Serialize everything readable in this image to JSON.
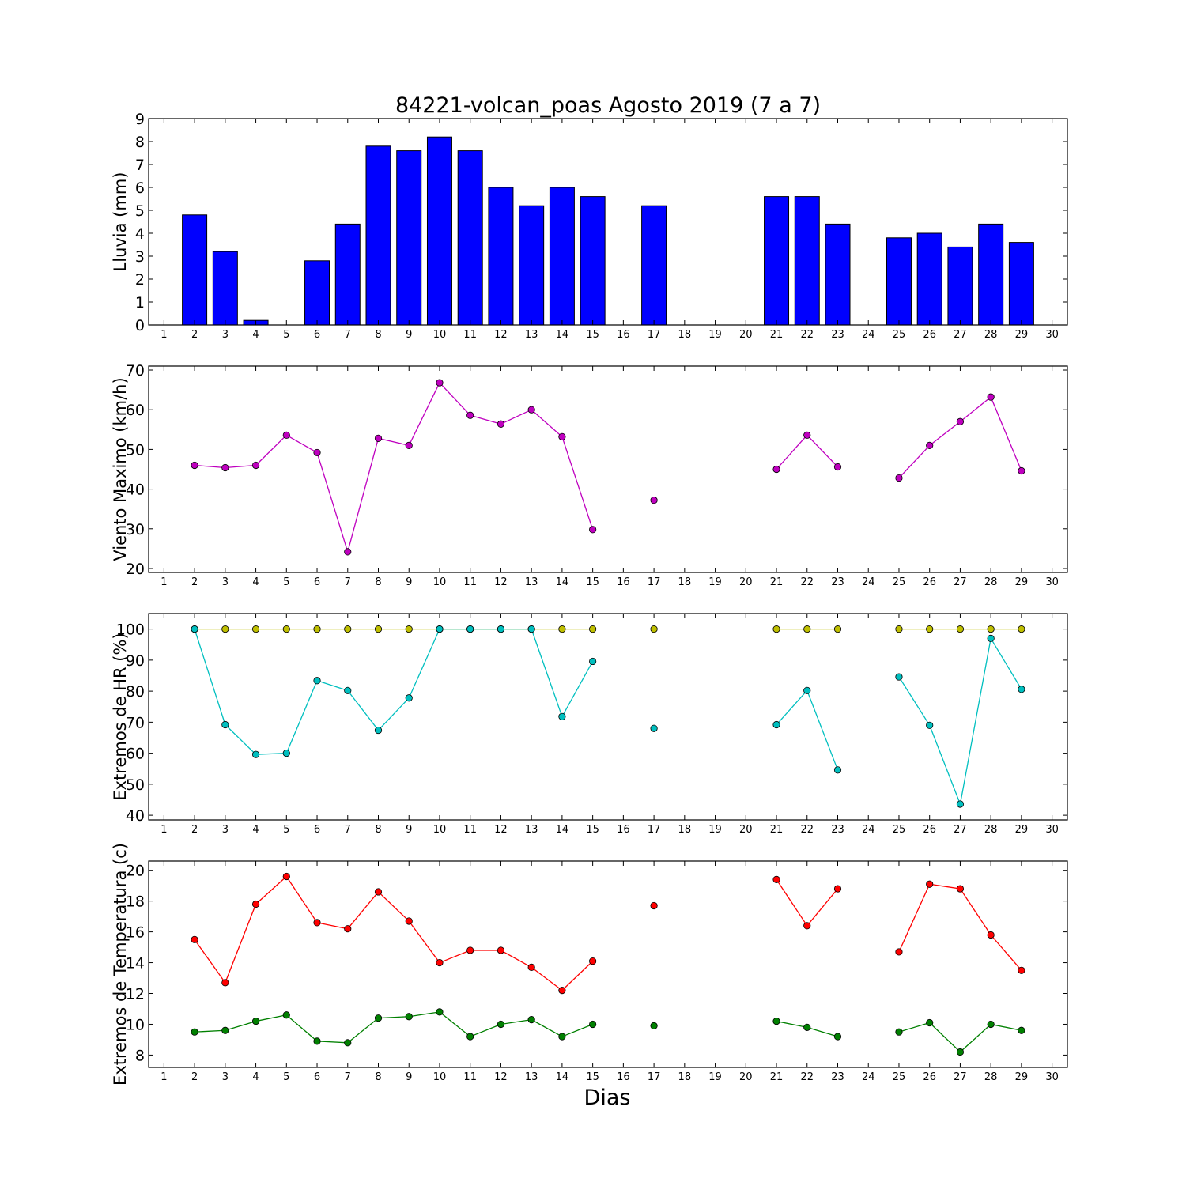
{
  "title": "84221-volcan_poas Agosto 2019  (7 a 7)",
  "xlabel": "Dias",
  "colors": {
    "rain": "#0000ff",
    "wind": "#bf00bf",
    "hr_max": "#bfbf00",
    "hr_min": "#00bfbf",
    "temp_max": "#ff0000",
    "temp_min": "#008000"
  },
  "chart_data": [
    {
      "type": "bar",
      "ylabel": "Lluvia (mm)",
      "xlim": [
        0.5,
        30.5
      ],
      "ylim": [
        0,
        9
      ],
      "yticks": [
        0,
        1,
        2,
        3,
        4,
        5,
        6,
        7,
        8,
        9
      ],
      "x": [
        1,
        2,
        3,
        4,
        5,
        6,
        7,
        8,
        9,
        10,
        11,
        12,
        13,
        14,
        15,
        16,
        17,
        18,
        19,
        20,
        21,
        22,
        23,
        24,
        25,
        26,
        27,
        28,
        29,
        30
      ],
      "series": [
        {
          "color": "#0000ff",
          "values": [
            null,
            4.8,
            3.2,
            0.2,
            null,
            2.8,
            4.4,
            7.8,
            7.6,
            8.2,
            7.6,
            6.0,
            5.2,
            6.0,
            5.6,
            null,
            5.2,
            null,
            null,
            null,
            5.6,
            5.6,
            4.4,
            null,
            3.8,
            4.0,
            3.4,
            4.4,
            3.6,
            null
          ]
        }
      ]
    },
    {
      "type": "line",
      "ylabel": "Viento Maximo (km/h)",
      "xlim": [
        0.5,
        30.5
      ],
      "ylim": [
        19,
        71
      ],
      "yticks": [
        20,
        30,
        40,
        50,
        60,
        70
      ],
      "x": [
        1,
        2,
        3,
        4,
        5,
        6,
        7,
        8,
        9,
        10,
        11,
        12,
        13,
        14,
        15,
        16,
        17,
        18,
        19,
        20,
        21,
        22,
        23,
        24,
        25,
        26,
        27,
        28,
        29,
        30
      ],
      "series": [
        {
          "color": "#bf00bf",
          "values": [
            null,
            46.0,
            45.4,
            46.0,
            53.6,
            49.2,
            24.2,
            52.8,
            51.0,
            66.8,
            58.6,
            56.4,
            60.0,
            53.2,
            29.8,
            null,
            37.2,
            null,
            null,
            null,
            45.0,
            53.6,
            45.6,
            null,
            42.8,
            51.0,
            57.0,
            63.2,
            44.6,
            null
          ]
        }
      ]
    },
    {
      "type": "line",
      "ylabel": "Extremos de HR (%)",
      "xlim": [
        0.5,
        30.5
      ],
      "ylim": [
        38.5,
        105
      ],
      "yticks": [
        40,
        50,
        60,
        70,
        80,
        90,
        100
      ],
      "x": [
        1,
        2,
        3,
        4,
        5,
        6,
        7,
        8,
        9,
        10,
        11,
        12,
        13,
        14,
        15,
        16,
        17,
        18,
        19,
        20,
        21,
        22,
        23,
        24,
        25,
        26,
        27,
        28,
        29,
        30
      ],
      "series": [
        {
          "color": "#bfbf00",
          "values": [
            null,
            100,
            100,
            100,
            100,
            100,
            100,
            100,
            100,
            100,
            100,
            100,
            100,
            100,
            100,
            null,
            100,
            null,
            null,
            null,
            100,
            100,
            100,
            null,
            100,
            100,
            100,
            100,
            100,
            null
          ]
        },
        {
          "color": "#00bfbf",
          "values": [
            null,
            100,
            69.2,
            59.6,
            60.0,
            83.4,
            80.2,
            67.4,
            77.8,
            100,
            100,
            100,
            100,
            71.8,
            89.6,
            null,
            68.0,
            null,
            null,
            null,
            69.2,
            80.2,
            54.6,
            null,
            84.6,
            69.0,
            43.6,
            97.0,
            80.6,
            null
          ]
        }
      ]
    },
    {
      "type": "line",
      "ylabel": "Extremos de Temperatura (c)",
      "xlim": [
        0.5,
        30.5
      ],
      "ylim": [
        7.2,
        20.6
      ],
      "yticks": [
        8,
        10,
        12,
        14,
        16,
        18,
        20
      ],
      "x": [
        1,
        2,
        3,
        4,
        5,
        6,
        7,
        8,
        9,
        10,
        11,
        12,
        13,
        14,
        15,
        16,
        17,
        18,
        19,
        20,
        21,
        22,
        23,
        24,
        25,
        26,
        27,
        28,
        29,
        30
      ],
      "series": [
        {
          "color": "#ff0000",
          "values": [
            null,
            15.5,
            12.7,
            17.8,
            19.6,
            16.6,
            16.2,
            18.6,
            16.7,
            14.0,
            14.8,
            14.8,
            13.7,
            12.2,
            14.1,
            null,
            17.7,
            null,
            null,
            null,
            19.4,
            16.4,
            18.8,
            null,
            14.7,
            19.1,
            18.8,
            15.8,
            13.5,
            null
          ]
        },
        {
          "color": "#008000",
          "values": [
            null,
            9.5,
            9.6,
            10.2,
            10.6,
            8.9,
            8.8,
            10.4,
            10.5,
            10.8,
            9.2,
            10.0,
            10.3,
            9.2,
            10.0,
            null,
            9.9,
            null,
            null,
            null,
            10.2,
            9.8,
            9.2,
            null,
            9.5,
            10.1,
            8.2,
            10.0,
            9.6,
            null
          ]
        }
      ]
    }
  ]
}
